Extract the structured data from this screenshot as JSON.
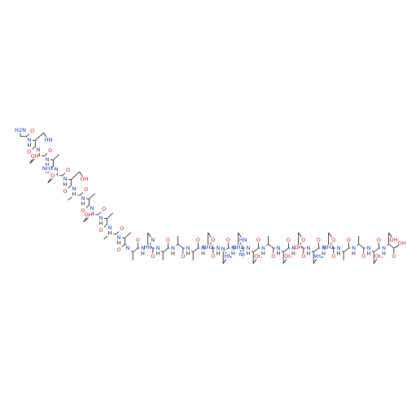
{
  "structure": {
    "residues": [
      {
        "amide": [
          "H2N"
        ],
        "carbonyl": "O",
        "side": []
      },
      {
        "amide": [
          "N",
          "H"
        ],
        "carbonyl": "O",
        "side": [
          "HN"
        ]
      },
      {
        "amide": [
          "N",
          "H"
        ],
        "carbonyl": "O",
        "side": [
          "OH"
        ]
      },
      {
        "amide": [
          "N",
          "H"
        ],
        "carbonyl": "O",
        "side": []
      },
      {
        "amide": [
          "N",
          "H"
        ],
        "carbonyl": "O",
        "side": [
          "O",
          "NH2"
        ]
      },
      {
        "amide": [
          "N",
          "H"
        ],
        "carbonyl": "O",
        "side": [
          "OH"
        ]
      },
      {
        "amide": [
          "N",
          "H"
        ],
        "carbonyl": "O",
        "side": []
      },
      {
        "amide": [
          "N",
          "H"
        ],
        "carbonyl": "O",
        "side": []
      },
      {
        "amide": [
          "N",
          "H"
        ],
        "carbonyl": "O",
        "side": [
          "OH"
        ]
      },
      {
        "amide": [
          "N",
          "H"
        ],
        "carbonyl": "O",
        "side": []
      },
      {
        "amide": [
          "N",
          "H"
        ],
        "carbonyl": "O",
        "side": []
      },
      {
        "amide": [
          "N",
          "H"
        ],
        "carbonyl": "O",
        "side": []
      },
      {
        "amide": [
          "N"
        ],
        "carbonyl": "O",
        "side": []
      },
      {
        "amide": [
          "N",
          "H"
        ],
        "carbonyl": "O",
        "side": [
          "N",
          "HN"
        ]
      },
      {
        "amide": [
          "N",
          "H"
        ],
        "carbonyl": "O",
        "side": []
      },
      {
        "amide": [
          "N",
          "H"
        ],
        "carbonyl": "O",
        "side": []
      },
      {
        "amide": [
          "N",
          "H"
        ],
        "carbonyl": "O",
        "side": []
      },
      {
        "amide": [
          "N",
          "H"
        ],
        "carbonyl": "O",
        "side": [
          "O",
          "NH2"
        ]
      },
      {
        "amide": [
          "N",
          "H"
        ],
        "carbonyl": "O",
        "side": [
          "HN",
          "N"
        ]
      },
      {
        "amide": [
          "N",
          "H"
        ],
        "carbonyl": "O",
        "side": [
          "HN",
          "NH2",
          "NH"
        ]
      },
      {
        "amide": [
          "N",
          "H"
        ],
        "carbonyl": "O",
        "side": [
          "OH"
        ]
      },
      {
        "amide": [
          "N",
          "H"
        ],
        "carbonyl": "O",
        "side": []
      },
      {
        "amide": [
          "N",
          "H"
        ],
        "carbonyl": "O",
        "side": [
          "OH"
        ]
      },
      {
        "amide": [
          "N",
          "H"
        ],
        "carbonyl": "O",
        "side": [
          "O",
          "OH"
        ]
      },
      {
        "amide": [
          "N",
          "H"
        ],
        "carbonyl": "O",
        "side": [
          "NH2"
        ]
      },
      {
        "amide": [
          "N",
          "H"
        ],
        "carbonyl": "O",
        "side": [
          "O",
          "NH2"
        ]
      },
      {
        "amide": [
          "N",
          "H"
        ],
        "carbonyl": "O",
        "side": []
      },
      {
        "amide": [
          "N",
          "H"
        ],
        "carbonyl": "O",
        "side": []
      },
      {
        "amide": [
          "N",
          "H"
        ],
        "carbonyl": "O",
        "side": [
          "OH"
        ]
      },
      {
        "amide": [
          "N",
          "H"
        ],
        "carbonyl": "O",
        "side": [
          "OH"
        ]
      }
    ],
    "c_terminus": [
      "OH"
    ]
  }
}
